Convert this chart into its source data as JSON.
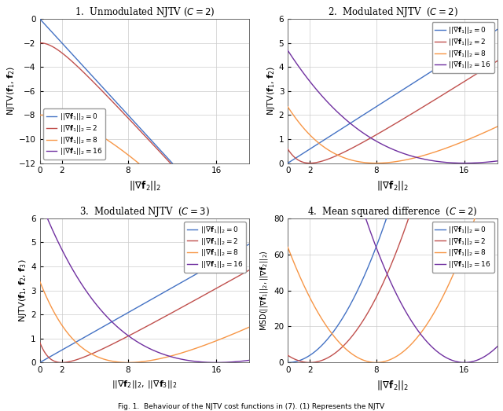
{
  "g1_values": [
    0,
    2,
    8,
    16
  ],
  "colors": [
    "#4472c4",
    "#c0504d",
    "#f79646",
    "#7030a0"
  ],
  "xmax": 19,
  "xlabel1": "$||\\nabla \\mathbf{f}_2||_2$",
  "xlabel2": "$||\\nabla \\mathbf{f}_2||_2$",
  "xlabel3": "$||\\nabla \\mathbf{f}_2||_2$, $||\\nabla \\mathbf{f}_3||_2$",
  "xlabel4": "$||\\nabla \\mathbf{f}_2||_2$",
  "ylabel1": "NJTV($\\mathbf{f}_1$, $\\mathbf{f}_2$)",
  "ylabel2": "NJTV($\\mathbf{f}_1$, $\\mathbf{f}_2$)",
  "ylabel3": "NJTV($\\mathbf{f}_1$, $\\mathbf{f}_2$, $\\mathbf{f}_3$)",
  "ylabel4": "MSD($||\\nabla \\mathbf{f}_1||_2$, $||\\nabla \\mathbf{f}_2||_2$)",
  "title1": "1.  Unmodulated NJTV ($C = 2$)",
  "title2": "2.  Modulated NJTV  ($C = 2$)",
  "title3": "3.  Modulated NJTV  ($C = 3$)",
  "title4": "4.  Mean squared difference  ($C = 2$)",
  "legend_labels": [
    "$||\\nabla \\mathbf{f}_1||_2 = 0$",
    "$||\\nabla \\mathbf{f}_1||_2 = 2$",
    "$||\\nabla \\mathbf{f}_1||_2 = 8$",
    "$||\\nabla \\mathbf{f}_1||_2 = 16$"
  ],
  "xticks": [
    0,
    2,
    8,
    16
  ],
  "ylim1": [
    -12,
    0
  ],
  "ylim2": [
    0,
    6
  ],
  "ylim3": [
    0,
    6
  ],
  "ylim4": [
    0,
    80
  ],
  "yticks1": [
    0,
    -2,
    -4,
    -6,
    -8,
    -10,
    -12
  ],
  "yticks2": [
    0,
    1,
    2,
    3,
    4,
    5,
    6
  ],
  "yticks3": [
    0,
    1,
    2,
    3,
    4,
    5,
    6
  ],
  "yticks4": [
    0,
    20,
    40,
    60,
    80
  ],
  "bg_color": "#ffffff",
  "grid_color": "#cccccc",
  "caption": "Fig. 1.  Behaviour of the NJTV cost functions in (7). (1) Represents the NJTV"
}
